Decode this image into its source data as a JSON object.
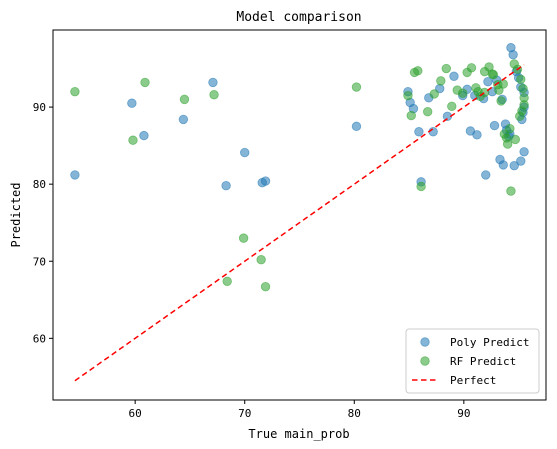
{
  "chart_data": {
    "type": "scatter",
    "title": "Model comparison",
    "xlabel": "True main_prob",
    "ylabel": "Predicted",
    "xlim": [
      52.5,
      97.5
    ],
    "ylim": [
      52.0,
      100.0
    ],
    "xticks": [
      60,
      70,
      80,
      90
    ],
    "yticks": [
      60,
      70,
      80,
      90
    ],
    "grid": false,
    "legend_position": "bottom-right",
    "colors": {
      "poly": "#1f77b4",
      "rf": "#2ca02c",
      "perfect": "#ff0000"
    },
    "series": [
      {
        "name": "Poly Predict",
        "kind": "scatter",
        "x": [
          54.5,
          59.7,
          60.8,
          64.4,
          67.1,
          70.0,
          68.3,
          71.6,
          71.9,
          80.2,
          84.9,
          85.1,
          85.4,
          85.9,
          86.1,
          86.8,
          87.2,
          87.8,
          88.5,
          89.1,
          89.9,
          90.3,
          90.6,
          91.2,
          91.8,
          92.2,
          92.6,
          93.0,
          93.3,
          93.6,
          93.9,
          94.1,
          94.3,
          94.5,
          94.8,
          95.0,
          95.2,
          95.5,
          95.5,
          95.4,
          95.3,
          95.5,
          95.2,
          94.6,
          94.2,
          93.8,
          93.5,
          92.8,
          92.0,
          91.0
        ],
        "y": [
          81.2,
          90.5,
          86.3,
          88.4,
          93.2,
          84.1,
          79.8,
          80.2,
          80.4,
          87.5,
          92.0,
          90.6,
          89.8,
          86.8,
          80.3,
          91.2,
          86.8,
          92.4,
          88.8,
          94.0,
          91.5,
          92.3,
          86.9,
          86.4,
          91.1,
          93.3,
          92.0,
          93.5,
          83.2,
          82.5,
          87.0,
          86.2,
          97.7,
          96.8,
          94.6,
          93.8,
          92.6,
          91.9,
          90.0,
          89.3,
          88.4,
          84.2,
          83.0,
          82.4,
          86.5,
          87.8,
          91.0,
          87.6,
          81.2,
          91.5
        ]
      },
      {
        "name": "RF Predict",
        "kind": "scatter",
        "x": [
          54.5,
          59.8,
          60.9,
          64.5,
          67.2,
          69.9,
          68.4,
          71.5,
          71.9,
          80.2,
          84.9,
          85.2,
          85.5,
          85.8,
          86.1,
          86.7,
          87.3,
          87.9,
          88.4,
          88.9,
          89.4,
          89.9,
          90.3,
          90.7,
          91.1,
          91.5,
          91.9,
          92.3,
          92.7,
          93.1,
          93.4,
          93.7,
          94.0,
          94.3,
          94.6,
          94.9,
          95.2,
          95.4,
          95.5,
          95.5,
          95.3,
          95.1,
          94.7,
          94.2,
          93.9,
          93.6,
          93.2,
          92.6,
          91.9,
          91.3
        ],
        "y": [
          92.0,
          85.7,
          93.2,
          91.0,
          91.6,
          73.0,
          67.4,
          70.2,
          66.7,
          92.6,
          91.5,
          88.9,
          94.5,
          94.7,
          79.7,
          89.4,
          91.7,
          93.4,
          95.0,
          90.1,
          92.2,
          91.8,
          94.5,
          95.1,
          92.5,
          91.4,
          94.6,
          95.2,
          94.2,
          92.9,
          90.8,
          86.5,
          85.2,
          79.1,
          95.6,
          94.9,
          93.6,
          92.4,
          91.2,
          90.3,
          89.5,
          88.8,
          85.8,
          87.2,
          86.0,
          93.0,
          92.2,
          94.3,
          91.9,
          92.0
        ]
      },
      {
        "name": "Perfect",
        "kind": "line",
        "style": "dashed",
        "x": [
          54.5,
          95.5
        ],
        "y": [
          54.5,
          95.5
        ]
      }
    ]
  }
}
